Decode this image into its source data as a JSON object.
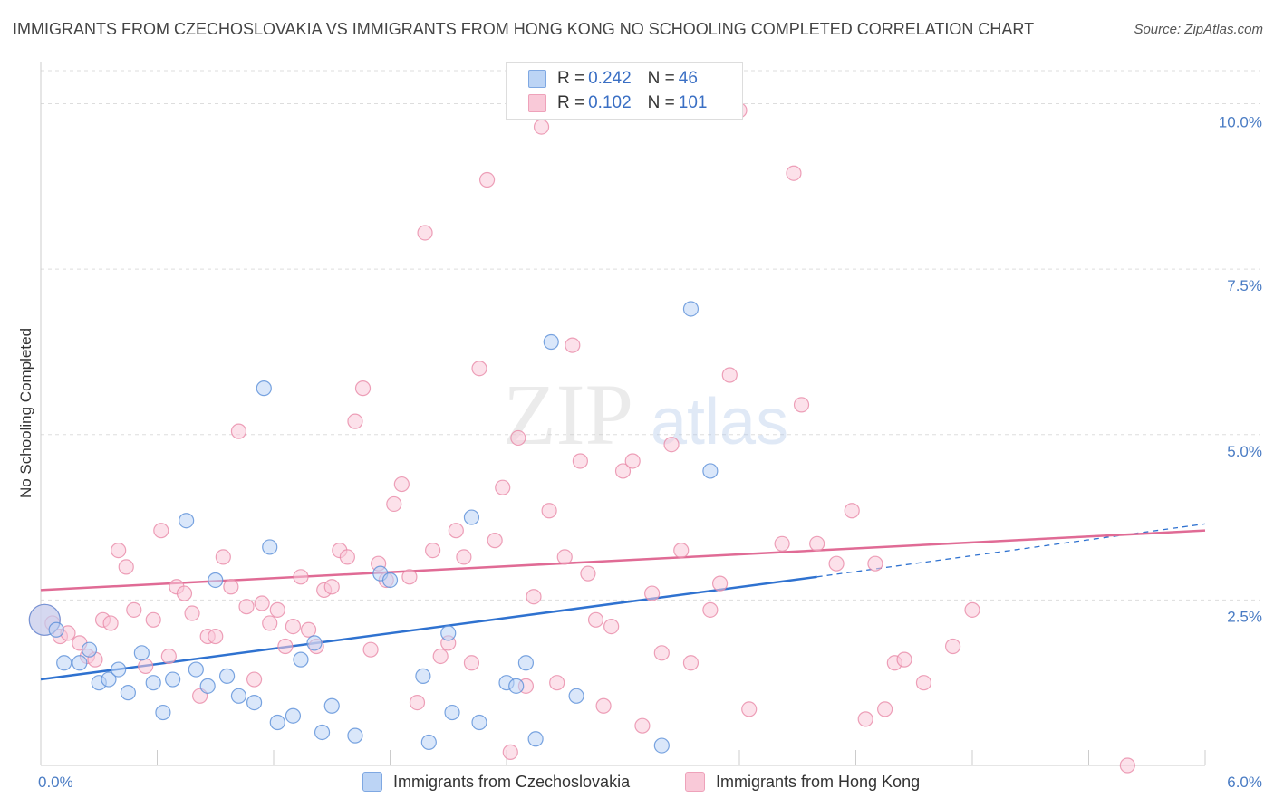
{
  "title": "IMMIGRANTS FROM CZECHOSLOVAKIA VS IMMIGRANTS FROM HONG KONG NO SCHOOLING COMPLETED CORRELATION CHART",
  "source": "Source: ZipAtlas.com",
  "watermark": {
    "zip": "ZIP",
    "atlas": "atlas"
  },
  "legend": {
    "rows": [
      {
        "r_label": "R =",
        "r_value": "0.242",
        "n_label": "N =",
        "n_value": "46",
        "color": "#a9c8f0"
      },
      {
        "r_label": "R =",
        "r_value": "0.102",
        "n_label": "N =",
        "n_value": "101",
        "color": "#f5b8cb"
      }
    ]
  },
  "bottom_legend": [
    {
      "label": "Immigrants from Czechoslovakia",
      "color": "#a9c8f0"
    },
    {
      "label": "Immigrants from Hong Kong",
      "color": "#f5b8cb"
    }
  ],
  "chart_data": {
    "type": "scatter",
    "title": "IMMIGRANTS FROM CZECHOSLOVAKIA VS IMMIGRANTS FROM HONG KONG NO SCHOOLING COMPLETED CORRELATION CHART",
    "xlabel": "",
    "ylabel": "No Schooling Completed",
    "xlim": [
      0,
      6
    ],
    "ylim": [
      0,
      10.5
    ],
    "x_tick_labels": [
      "0.0%",
      "6.0%"
    ],
    "y_ticks": [
      2.5,
      5.0,
      7.5,
      10.0
    ],
    "y_tick_labels": [
      "2.5%",
      "5.0%",
      "7.5%",
      "10.0%"
    ],
    "grid": "horizontal dashed",
    "series": [
      {
        "name": "Immigrants from Czechoslovakia",
        "color": "#5a8fd8",
        "fill": "#bcd4f5",
        "trend": {
          "x": [
            0.0,
            4.0
          ],
          "y": [
            1.3,
            2.85
          ],
          "dashed_to": [
            6.0,
            3.65
          ],
          "color": "#2f72d0"
        },
        "points": [
          [
            0.02,
            2.2
          ],
          [
            0.08,
            2.05
          ],
          [
            0.12,
            1.55
          ],
          [
            0.2,
            1.55
          ],
          [
            0.25,
            1.75
          ],
          [
            0.3,
            1.25
          ],
          [
            0.35,
            1.3
          ],
          [
            0.4,
            1.45
          ],
          [
            0.45,
            1.1
          ],
          [
            0.52,
            1.7
          ],
          [
            0.58,
            1.25
          ],
          [
            0.63,
            0.8
          ],
          [
            0.68,
            1.3
          ],
          [
            0.75,
            3.7
          ],
          [
            0.8,
            1.45
          ],
          [
            0.86,
            1.2
          ],
          [
            0.9,
            2.8
          ],
          [
            0.96,
            1.35
          ],
          [
            1.02,
            1.05
          ],
          [
            1.1,
            0.95
          ],
          [
            1.15,
            5.7
          ],
          [
            1.18,
            3.3
          ],
          [
            1.22,
            0.65
          ],
          [
            1.3,
            0.75
          ],
          [
            1.34,
            1.6
          ],
          [
            1.41,
            1.85
          ],
          [
            1.45,
            0.5
          ],
          [
            1.5,
            0.9
          ],
          [
            1.62,
            0.45
          ],
          [
            1.75,
            2.9
          ],
          [
            1.8,
            2.8
          ],
          [
            1.97,
            1.35
          ],
          [
            2.0,
            0.35
          ],
          [
            2.1,
            2.0
          ],
          [
            2.12,
            0.8
          ],
          [
            2.22,
            3.75
          ],
          [
            2.26,
            0.65
          ],
          [
            2.4,
            1.25
          ],
          [
            2.45,
            1.2
          ],
          [
            2.5,
            1.55
          ],
          [
            2.55,
            0.4
          ],
          [
            2.63,
            6.4
          ],
          [
            2.76,
            1.05
          ],
          [
            3.2,
            0.3
          ],
          [
            3.35,
            6.9
          ],
          [
            3.45,
            4.45
          ]
        ]
      },
      {
        "name": "Immigrants from Hong Kong",
        "color": "#e889a8",
        "fill": "#f9c9d8",
        "trend": {
          "x": [
            0.0,
            6.0
          ],
          "y": [
            2.65,
            3.55
          ],
          "color": "#e06b95"
        },
        "points": [
          [
            0.02,
            2.2
          ],
          [
            0.06,
            2.15
          ],
          [
            0.1,
            1.95
          ],
          [
            0.14,
            2.0
          ],
          [
            0.2,
            1.85
          ],
          [
            0.24,
            1.65
          ],
          [
            0.28,
            1.6
          ],
          [
            0.32,
            2.2
          ],
          [
            0.36,
            2.15
          ],
          [
            0.4,
            3.25
          ],
          [
            0.44,
            3.0
          ],
          [
            0.48,
            2.35
          ],
          [
            0.54,
            1.5
          ],
          [
            0.58,
            2.2
          ],
          [
            0.62,
            3.55
          ],
          [
            0.66,
            1.65
          ],
          [
            0.7,
            2.7
          ],
          [
            0.74,
            2.6
          ],
          [
            0.78,
            2.3
          ],
          [
            0.82,
            1.05
          ],
          [
            0.86,
            1.95
          ],
          [
            0.9,
            1.95
          ],
          [
            0.94,
            3.15
          ],
          [
            0.98,
            2.7
          ],
          [
            1.02,
            5.05
          ],
          [
            1.06,
            2.4
          ],
          [
            1.1,
            1.3
          ],
          [
            1.14,
            2.45
          ],
          [
            1.18,
            2.15
          ],
          [
            1.22,
            2.35
          ],
          [
            1.26,
            1.8
          ],
          [
            1.3,
            2.1
          ],
          [
            1.34,
            2.85
          ],
          [
            1.38,
            2.05
          ],
          [
            1.42,
            1.8
          ],
          [
            1.46,
            2.65
          ],
          [
            1.5,
            2.7
          ],
          [
            1.54,
            3.25
          ],
          [
            1.58,
            3.15
          ],
          [
            1.62,
            5.2
          ],
          [
            1.66,
            5.7
          ],
          [
            1.7,
            1.75
          ],
          [
            1.74,
            3.05
          ],
          [
            1.78,
            2.8
          ],
          [
            1.82,
            3.95
          ],
          [
            1.86,
            4.25
          ],
          [
            1.9,
            2.85
          ],
          [
            1.94,
            0.95
          ],
          [
            1.98,
            8.05
          ],
          [
            2.02,
            3.25
          ],
          [
            2.06,
            1.65
          ],
          [
            2.1,
            1.85
          ],
          [
            2.14,
            3.55
          ],
          [
            2.18,
            3.15
          ],
          [
            2.22,
            1.55
          ],
          [
            2.26,
            6.0
          ],
          [
            2.3,
            8.85
          ],
          [
            2.34,
            3.4
          ],
          [
            2.38,
            4.2
          ],
          [
            2.42,
            0.2
          ],
          [
            2.46,
            4.95
          ],
          [
            2.5,
            1.2
          ],
          [
            2.54,
            2.55
          ],
          [
            2.58,
            9.65
          ],
          [
            2.62,
            3.85
          ],
          [
            2.66,
            1.25
          ],
          [
            2.7,
            3.15
          ],
          [
            2.74,
            6.35
          ],
          [
            2.78,
            4.6
          ],
          [
            2.82,
            2.9
          ],
          [
            2.86,
            2.2
          ],
          [
            2.9,
            0.9
          ],
          [
            2.94,
            2.1
          ],
          [
            3.0,
            4.45
          ],
          [
            3.05,
            4.6
          ],
          [
            3.1,
            0.6
          ],
          [
            3.15,
            2.6
          ],
          [
            3.2,
            1.7
          ],
          [
            3.25,
            4.85
          ],
          [
            3.3,
            3.25
          ],
          [
            3.35,
            1.55
          ],
          [
            3.45,
            2.35
          ],
          [
            3.5,
            2.75
          ],
          [
            3.55,
            5.9
          ],
          [
            3.6,
            9.9
          ],
          [
            3.65,
            0.85
          ],
          [
            3.82,
            3.35
          ],
          [
            3.88,
            8.95
          ],
          [
            3.92,
            5.45
          ],
          [
            4.0,
            3.35
          ],
          [
            4.1,
            3.05
          ],
          [
            4.18,
            3.85
          ],
          [
            4.25,
            0.7
          ],
          [
            4.3,
            3.05
          ],
          [
            4.35,
            0.85
          ],
          [
            4.4,
            1.55
          ],
          [
            4.45,
            1.6
          ],
          [
            4.55,
            1.25
          ],
          [
            4.7,
            1.8
          ],
          [
            4.8,
            2.35
          ],
          [
            5.6,
            0.0
          ]
        ]
      }
    ]
  }
}
